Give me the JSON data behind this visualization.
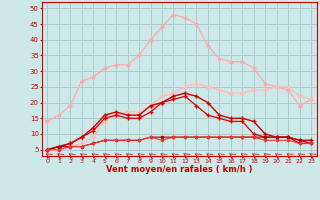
{
  "x": [
    0,
    1,
    2,
    3,
    4,
    5,
    6,
    7,
    8,
    9,
    10,
    11,
    12,
    13,
    14,
    15,
    16,
    17,
    18,
    19,
    20,
    21,
    22,
    23
  ],
  "line_rafales_max": [
    14,
    16,
    19,
    27,
    28,
    31,
    32,
    32,
    35,
    40,
    44,
    48,
    47,
    45,
    38,
    34,
    33,
    33,
    31,
    26,
    25,
    24,
    19,
    21
  ],
  "line_moy_smooth": [
    5,
    5,
    6,
    7,
    9,
    14,
    16,
    17,
    17,
    19,
    22,
    23,
    25,
    26,
    25,
    24,
    23,
    23,
    24,
    24,
    25,
    25,
    22,
    21
  ],
  "line_dark_bell": [
    5,
    6,
    7,
    9,
    12,
    16,
    17,
    16,
    16,
    19,
    20,
    22,
    23,
    22,
    20,
    16,
    15,
    15,
    14,
    10,
    9,
    9,
    8,
    8
  ],
  "line_dark_bell2": [
    5,
    6,
    7,
    9,
    11,
    15,
    16,
    15,
    15,
    17,
    20,
    21,
    22,
    19,
    16,
    15,
    14,
    14,
    10,
    9,
    9,
    9,
    7,
    7
  ],
  "line_flat_low": [
    5,
    6,
    6,
    6,
    7,
    8,
    8,
    8,
    8,
    9,
    9,
    9,
    9,
    9,
    9,
    9,
    9,
    9,
    9,
    9,
    9,
    9,
    8,
    7
  ],
  "line_flat_low2": [
    5,
    5,
    6,
    6,
    7,
    8,
    8,
    8,
    8,
    9,
    8,
    9,
    9,
    9,
    9,
    9,
    9,
    9,
    9,
    8,
    8,
    8,
    7,
    7
  ],
  "bg_color": "#cce8e8",
  "grid_color": "#aacccc",
  "color_light_pink": "#ffaaaa",
  "color_medium_pink": "#ffbbbb",
  "color_dark_red": "#cc0000",
  "color_red": "#dd0000",
  "color_dark_red2": "#aa0000",
  "color_mid_red": "#ee3333",
  "xlabel": "Vent moyen/en rafales ( km/h )",
  "ylim": [
    3,
    52
  ],
  "xlim": [
    -0.5,
    23.5
  ],
  "yticks": [
    5,
    10,
    15,
    20,
    25,
    30,
    35,
    40,
    45,
    50
  ],
  "xticks": [
    0,
    1,
    2,
    3,
    4,
    5,
    6,
    7,
    8,
    9,
    10,
    11,
    12,
    13,
    14,
    15,
    16,
    17,
    18,
    19,
    20,
    21,
    22,
    23
  ]
}
